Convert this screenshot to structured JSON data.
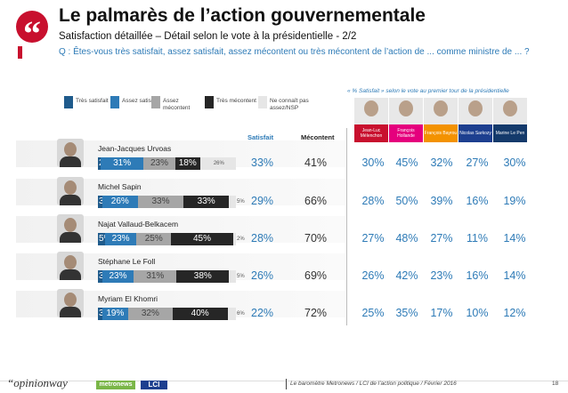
{
  "header": {
    "quote_mark": "“",
    "title": "Le palmarès de l’action gouvernementale",
    "subtitle": "Satisfaction détaillée – Détail selon le vote à la présidentielle - 2/2",
    "question": "Q : Êtes-vous très satisfait, assez satisfait, assez mécontent ou très mécontent de l’action de ... comme ministre de ... ?"
  },
  "legend": [
    {
      "label": "Très satisfait",
      "color": "#1f5b8c"
    },
    {
      "label": "Assez satisfait",
      "color": "#2e7bb7"
    },
    {
      "label": "Assez mécontent",
      "color": "#a6a6a6"
    },
    {
      "label": "Très mécontent",
      "color": "#262626"
    },
    {
      "label": "Ne connaît pas assez/NSP",
      "color": "#e6e6e6"
    }
  ],
  "columns": {
    "satisfait": "Satisfait",
    "mecontent": "Mécontent"
  },
  "candidates_caption": "« % Satisfait » selon le vote au premier tour de la présidentielle",
  "candidates": [
    {
      "name": "Jean-Luc Mélenchon",
      "color": "#c8102e"
    },
    {
      "name": "François Hollande",
      "color": "#e5007d"
    },
    {
      "name": "François Bayrou",
      "color": "#f39200"
    },
    {
      "name": "Nicolas Sarkozy",
      "color": "#1d3f8f"
    },
    {
      "name": "Marine Le Pen",
      "color": "#143a6b"
    }
  ],
  "chart_data": {
    "type": "bar",
    "title": "Satisfaction détaillée – Détail selon le vote à la présidentielle - 2/2",
    "categories": [
      "Jean-Jacques Urvoas",
      "Michel Sapin",
      "Najat Vallaud-Belkacem",
      "Stéphane Le Foll",
      "Myriam El Khomri"
    ],
    "series": [
      {
        "name": "Très satisfait",
        "values": [
          2,
          3,
          5,
          3,
          3
        ]
      },
      {
        "name": "Assez satisfait",
        "values": [
          31,
          26,
          23,
          23,
          19
        ]
      },
      {
        "name": "Assez mécontent",
        "values": [
          23,
          33,
          25,
          31,
          32
        ]
      },
      {
        "name": "Très mécontent",
        "values": [
          18,
          33,
          45,
          38,
          40
        ]
      },
      {
        "name": "Ne connaît pas assez/NSP",
        "values": [
          26,
          5,
          2,
          5,
          6
        ]
      }
    ],
    "labels": [
      [
        "2%",
        "31%",
        "23%",
        "18%",
        "26%"
      ],
      [
        "3%",
        "26%",
        "33%",
        "33%",
        "5%"
      ],
      [
        "5%",
        "23%",
        "25%",
        "45%",
        "2%"
      ],
      [
        "3%",
        "23%",
        "31%",
        "38%",
        "5%"
      ],
      [
        "3%",
        "19%",
        "32%",
        "40%",
        "6%"
      ]
    ],
    "satisfait": [
      "33%",
      "29%",
      "28%",
      "26%",
      "22%"
    ],
    "mecontent": [
      "41%",
      "66%",
      "70%",
      "69%",
      "72%"
    ],
    "by_candidate": [
      [
        "30%",
        "45%",
        "32%",
        "27%",
        "30%"
      ],
      [
        "28%",
        "50%",
        "39%",
        "16%",
        "19%"
      ],
      [
        "27%",
        "48%",
        "27%",
        "11%",
        "14%"
      ],
      [
        "26%",
        "42%",
        "23%",
        "16%",
        "14%"
      ],
      [
        "25%",
        "35%",
        "17%",
        "10%",
        "12%"
      ]
    ]
  },
  "footer": {
    "logo_opinionway": "“opinionway",
    "logo_metronews": "metronews",
    "logo_lci": "LCI",
    "text": "Le baromètre Metronews / LCI de l’action politique / Février 2016",
    "page_number": "18"
  }
}
